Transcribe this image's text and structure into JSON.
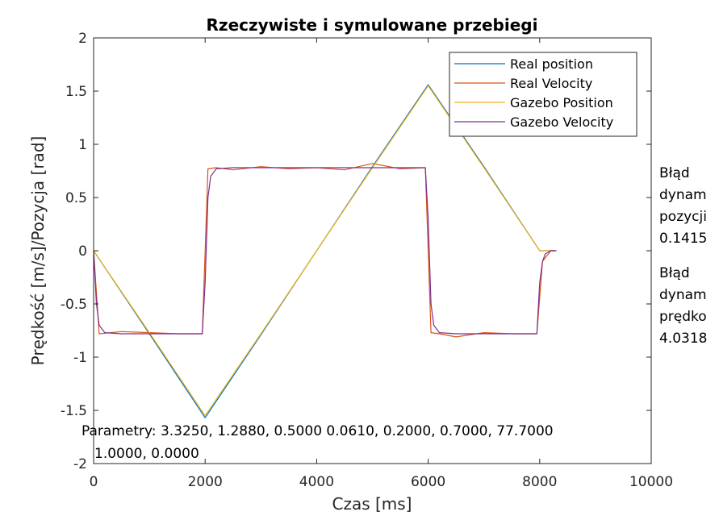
{
  "chart_data": {
    "type": "line",
    "title": "Rzeczywiste i symulowane przebiegi",
    "xlabel": "Czas [ms]",
    "ylabel": "Prędkość [m/s]/Pozycja [rad]",
    "xlim": [
      0,
      10000
    ],
    "ylim": [
      -2,
      2
    ],
    "xticks": [
      "0",
      "2000",
      "4000",
      "6000",
      "8000",
      "10000"
    ],
    "yticks": [
      "-2",
      "-1.5",
      "-1",
      "-0.5",
      "0",
      "0.5",
      "1",
      "1.5",
      "2"
    ],
    "grid": false,
    "legend_position": "top-right",
    "series": [
      {
        "name": "Real position",
        "color": "#0072BD",
        "x": [
          0,
          1000,
          2000,
          3000,
          4000,
          5000,
          6000,
          7000,
          8000,
          8300
        ],
        "y": [
          0,
          -0.78,
          -1.57,
          -0.79,
          0.0,
          0.79,
          1.56,
          0.79,
          0.0,
          0.0
        ]
      },
      {
        "name": "Real Velocity",
        "color": "#D95319",
        "x": [
          0,
          100,
          500,
          1000,
          1500,
          1950,
          2050,
          2200,
          2500,
          3000,
          3500,
          4000,
          4500,
          5000,
          5500,
          5950,
          6050,
          6200,
          6500,
          7000,
          7500,
          7950,
          8050,
          8200,
          8300
        ],
        "y": [
          0,
          -0.78,
          -0.76,
          -0.77,
          -0.78,
          -0.78,
          0.77,
          0.78,
          0.76,
          0.79,
          0.77,
          0.78,
          0.76,
          0.82,
          0.77,
          0.78,
          -0.77,
          -0.78,
          -0.81,
          -0.77,
          -0.78,
          -0.78,
          -0.1,
          0.0,
          0.0
        ]
      },
      {
        "name": "Gazebo Position",
        "color": "#EDB120",
        "x": [
          0,
          1000,
          2000,
          3000,
          4000,
          5000,
          6000,
          7000,
          8000,
          8300
        ],
        "y": [
          0,
          -0.77,
          -1.55,
          -0.78,
          0.0,
          0.78,
          1.55,
          0.78,
          0.0,
          0.0
        ]
      },
      {
        "name": "Gazebo Velocity",
        "color": "#7E2F8E",
        "x": [
          0,
          50,
          100,
          200,
          500,
          1000,
          1500,
          1950,
          2000,
          2050,
          2100,
          2200,
          2500,
          3000,
          4000,
          5000,
          5950,
          6000,
          6050,
          6100,
          6200,
          6500,
          7000,
          7950,
          8000,
          8050,
          8100,
          8200,
          8300
        ],
        "y": [
          0,
          -0.5,
          -0.7,
          -0.77,
          -0.78,
          -0.78,
          -0.78,
          -0.78,
          -0.3,
          0.5,
          0.7,
          0.77,
          0.78,
          0.78,
          0.78,
          0.78,
          0.78,
          0.3,
          -0.5,
          -0.7,
          -0.77,
          -0.78,
          -0.78,
          -0.78,
          -0.3,
          -0.1,
          -0.03,
          0.0,
          0.0
        ]
      }
    ],
    "annotations": {
      "parametry_line1": "Parametry: 3.3250, 1.2880, 0.5000 0.0610, 0.2000, 0.7000, 77.7000",
      "parametry_line2": "1.0000, 0.0000",
      "blad_pozycji": [
        "Błąd",
        "dynam",
        "pozycji",
        "0.1415"
      ],
      "blad_predkosci": [
        "Błąd",
        "dynam",
        "prędko",
        "4.0318"
      ]
    }
  }
}
